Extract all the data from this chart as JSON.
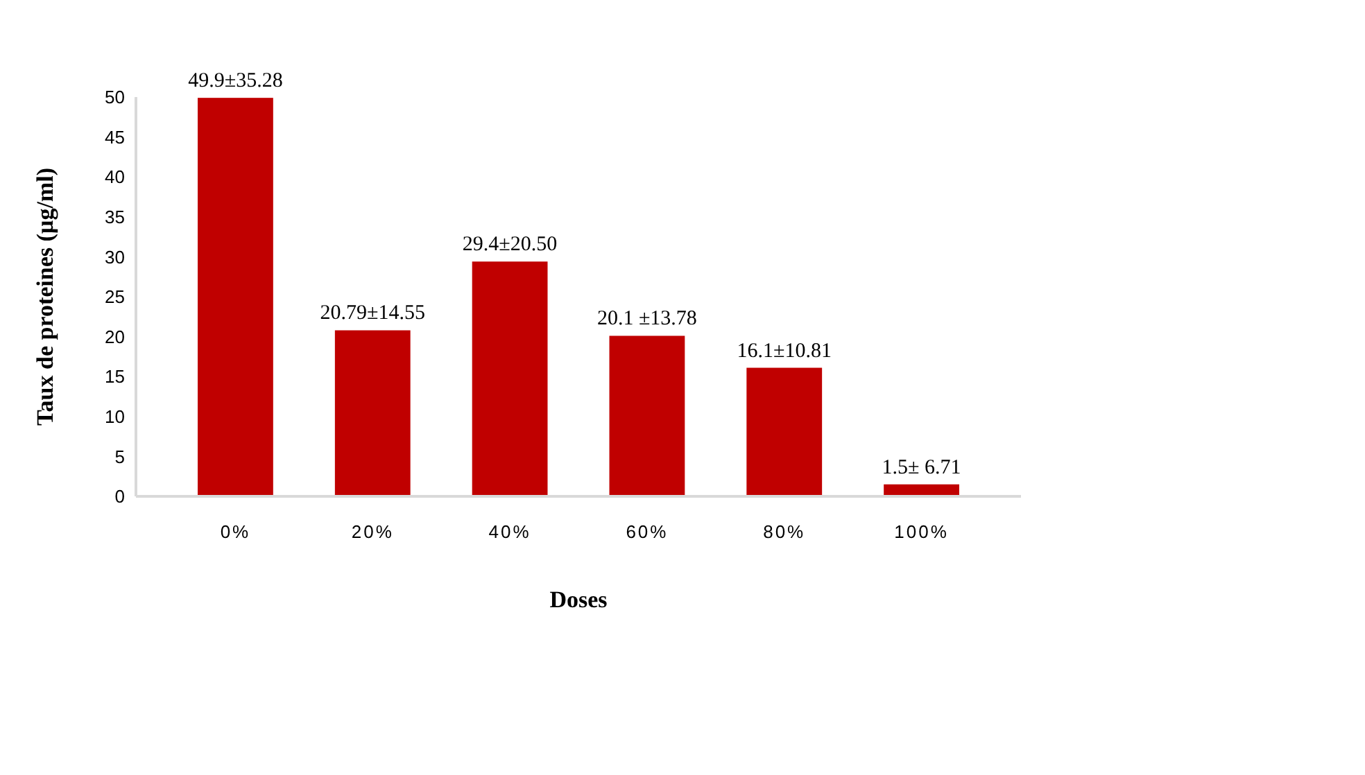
{
  "chart_data": {
    "type": "bar",
    "xlabel": "Doses",
    "ylabel": "Taux de proteines (µg/ml)",
    "categories": [
      "0%",
      "20%",
      "40%",
      "60%",
      "80%",
      "100%"
    ],
    "values": [
      49.9,
      20.79,
      29.4,
      20.1,
      16.1,
      1.5
    ],
    "value_labels": [
      "49.9±35.28",
      "20.79±14.55",
      "29.4±20.50",
      "20.1 ±13.78",
      "16.1±10.81",
      "1.5± 6.71"
    ],
    "color": "#c00000",
    "ylim": [
      0,
      50
    ],
    "yticks": [
      0,
      5,
      10,
      15,
      20,
      25,
      30,
      35,
      40,
      45,
      50
    ],
    "grid": false
  }
}
